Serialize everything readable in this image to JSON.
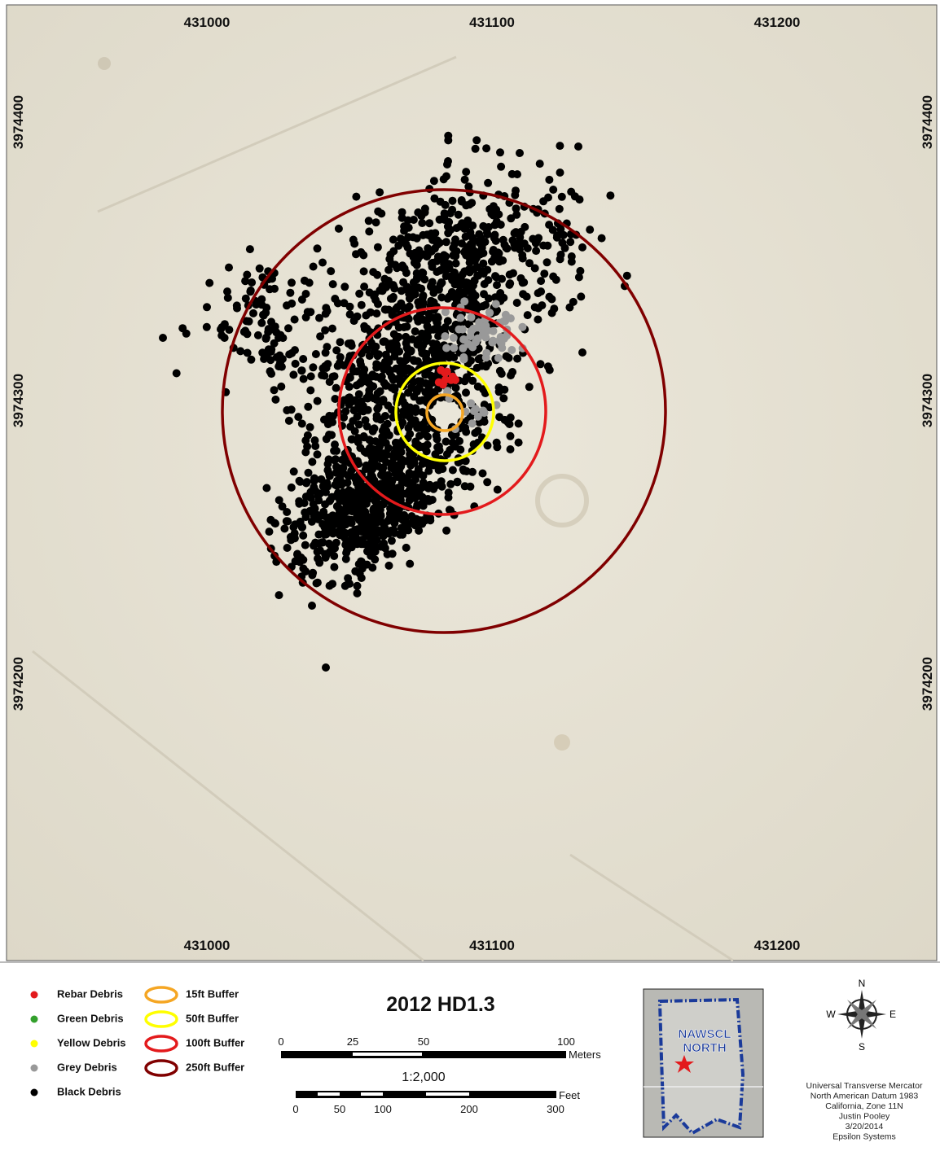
{
  "map": {
    "x_labels": [
      "431000",
      "431100",
      "431200"
    ],
    "y_labels": [
      "3974400",
      "3974300",
      "3974200"
    ]
  },
  "legend": {
    "debris": [
      {
        "label": "Rebar Debris",
        "color": "#e31a1c"
      },
      {
        "label": "Green Debris",
        "color": "#33a02c"
      },
      {
        "label": "Yellow Debris",
        "color": "#ffff00"
      },
      {
        "label": "Grey Debris",
        "color": "#999999"
      },
      {
        "label": "Black Debris",
        "color": "#000000"
      }
    ],
    "buffers": [
      {
        "label": "15ft Buffer",
        "color": "#f5a623"
      },
      {
        "label": "50ft Buffer",
        "color": "#ffff00"
      },
      {
        "label": "100ft Buffer",
        "color": "#e31a1c"
      },
      {
        "label": "250ft Buffer",
        "color": "#800000"
      }
    ]
  },
  "title": "2012 HD1.3",
  "scale_bar": {
    "meters_labels": [
      "0",
      "25",
      "50",
      "100"
    ],
    "meters_unit": "Meters",
    "ratio": "1:2,000",
    "feet_labels": [
      "0",
      "50",
      "100",
      "200",
      "300"
    ],
    "feet_unit": "Feet"
  },
  "inset": {
    "line1": "NAWSCL",
    "line2": "NORTH"
  },
  "compass": {
    "n": "N",
    "e": "E",
    "s": "S",
    "w": "W"
  },
  "credits": [
    "Universal Transverse Mercator",
    "North American Datum 1983",
    "California, Zone 11N",
    "Justin Pooley",
    "3/20/2014",
    "Epsilon Systems"
  ]
}
